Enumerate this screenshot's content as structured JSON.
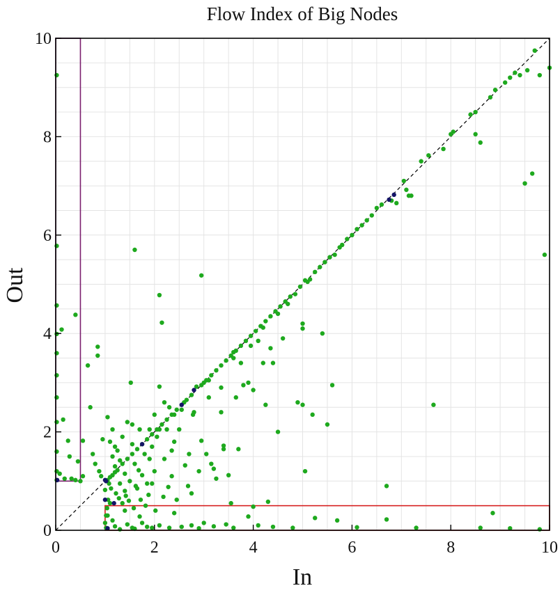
{
  "chart_data": {
    "type": "scatter",
    "title": "Flow Index of Big Nodes",
    "xlabel": "In",
    "ylabel": "Out",
    "xlim": [
      0,
      10
    ],
    "ylim": [
      0,
      10
    ],
    "x_ticks": [
      "0",
      "2",
      "4",
      "6",
      "8",
      "10"
    ],
    "y_ticks": [
      "0",
      "2",
      "4",
      "6",
      "8",
      "10"
    ],
    "grid": true,
    "legend": "none",
    "reference_line": {
      "from": [
        0,
        0
      ],
      "to": [
        10,
        10
      ],
      "style": "dashed",
      "color": "#000000"
    },
    "regions": [
      {
        "x0": 0,
        "x1": 0.5,
        "y0": 1,
        "y1": 10,
        "color": "#7a1f6e"
      },
      {
        "x0": 1,
        "x1": 10,
        "y0": 0,
        "y1": 0.5,
        "color": "#d61f1f"
      }
    ],
    "series": [
      {
        "color": "#1ea91e",
        "points": [
          [
            0.02,
            9.25
          ],
          [
            0.02,
            5.78
          ],
          [
            0.02,
            4.57
          ],
          [
            0.02,
            3.99
          ],
          [
            0.02,
            3.6
          ],
          [
            0.02,
            3.15
          ],
          [
            0.02,
            2.7
          ],
          [
            0.02,
            2.2
          ],
          [
            0.02,
            1.6
          ],
          [
            0.02,
            1.2
          ],
          [
            0.02,
            1.02
          ],
          [
            0.12,
            4.08
          ],
          [
            0.15,
            2.25
          ],
          [
            0.25,
            1.82
          ],
          [
            0.28,
            1.5
          ],
          [
            0.32,
            1.05
          ],
          [
            0.4,
            1.02
          ],
          [
            0.45,
            1.4
          ],
          [
            0.5,
            1.0
          ],
          [
            0.4,
            4.38
          ],
          [
            0.08,
            1.15
          ],
          [
            0.18,
            1.05
          ],
          [
            0.55,
            1.82
          ],
          [
            0.55,
            1.1
          ],
          [
            0.65,
            3.35
          ],
          [
            0.75,
            1.55
          ],
          [
            0.8,
            1.35
          ],
          [
            0.85,
            3.73
          ],
          [
            0.85,
            3.55
          ],
          [
            0.95,
            1.85
          ],
          [
            0.7,
            2.5
          ],
          [
            0.88,
            1.2
          ],
          [
            0.92,
            1.1
          ],
          [
            1.05,
            2.3
          ],
          [
            1.1,
            1.8
          ],
          [
            1.15,
            2.05
          ],
          [
            1.15,
            1.5
          ],
          [
            1.2,
            1.7
          ],
          [
            1.2,
            1.3
          ],
          [
            1.25,
            1.62
          ],
          [
            1.3,
            1.42
          ],
          [
            1.3,
            0.95
          ],
          [
            1.35,
            1.9
          ],
          [
            1.4,
            1.15
          ],
          [
            1.4,
            0.8
          ],
          [
            1.45,
            2.2
          ],
          [
            1.5,
            1.0
          ],
          [
            1.52,
            3.0
          ],
          [
            1.55,
            1.75
          ],
          [
            1.55,
            2.15
          ],
          [
            1.6,
            5.7
          ],
          [
            1.6,
            1.35
          ],
          [
            1.65,
            0.85
          ],
          [
            1.7,
            2.05
          ],
          [
            1.75,
            1.12
          ],
          [
            1.8,
            1.55
          ],
          [
            1.85,
            0.95
          ],
          [
            1.9,
            1.45
          ],
          [
            1.9,
            2.05
          ],
          [
            1.95,
            1.7
          ],
          [
            2.0,
            1.2
          ],
          [
            2.0,
            2.35
          ],
          [
            2.05,
            1.9
          ],
          [
            2.1,
            2.92
          ],
          [
            2.1,
            4.78
          ],
          [
            2.15,
            4.22
          ],
          [
            2.2,
            2.6
          ],
          [
            2.25,
            2.05
          ],
          [
            2.3,
            2.5
          ],
          [
            2.35,
            1.1
          ],
          [
            2.4,
            1.8
          ],
          [
            2.4,
            0.35
          ],
          [
            2.5,
            2.05
          ],
          [
            2.55,
            2.45
          ],
          [
            2.6,
            2.6
          ],
          [
            2.7,
            1.55
          ],
          [
            2.75,
            0.75
          ],
          [
            2.8,
            2.4
          ],
          [
            2.85,
            2.92
          ],
          [
            2.9,
            1.2
          ],
          [
            2.95,
            5.18
          ],
          [
            3.0,
            3.0
          ],
          [
            3.05,
            1.55
          ],
          [
            3.1,
            2.7
          ],
          [
            3.2,
            1.25
          ],
          [
            3.25,
            1.05
          ],
          [
            3.35,
            2.9
          ],
          [
            3.4,
            1.72
          ],
          [
            3.4,
            1.65
          ],
          [
            3.55,
            0.55
          ],
          [
            3.6,
            3.62
          ],
          [
            3.65,
            2.7
          ],
          [
            3.75,
            3.4
          ],
          [
            3.8,
            2.95
          ],
          [
            3.9,
            3.0
          ],
          [
            3.95,
            3.75
          ],
          [
            4.0,
            2.85
          ],
          [
            4.1,
            3.85
          ],
          [
            4.2,
            3.4
          ],
          [
            4.25,
            2.55
          ],
          [
            4.35,
            3.7
          ],
          [
            4.4,
            3.4
          ],
          [
            4.5,
            4.4
          ],
          [
            4.6,
            3.9
          ],
          [
            4.7,
            4.6
          ],
          [
            4.85,
            4.8
          ],
          [
            4.9,
            2.6
          ],
          [
            5.0,
            2.55
          ],
          [
            5.0,
            4.1
          ],
          [
            5.0,
            4.2
          ],
          [
            5.05,
            1.2
          ],
          [
            5.1,
            5.05
          ],
          [
            5.2,
            2.35
          ],
          [
            5.4,
            4.0
          ],
          [
            5.5,
            2.15
          ],
          [
            5.6,
            2.95
          ],
          [
            5.65,
            5.6
          ],
          [
            5.8,
            5.8
          ],
          [
            6.0,
            6.0
          ],
          [
            6.2,
            6.2
          ],
          [
            6.4,
            6.4
          ],
          [
            6.5,
            6.55
          ],
          [
            6.6,
            6.62
          ],
          [
            6.7,
            0.9
          ],
          [
            6.8,
            6.7
          ],
          [
            6.9,
            6.65
          ],
          [
            7.1,
            6.92
          ],
          [
            7.15,
            6.8
          ],
          [
            7.4,
            7.5
          ],
          [
            7.55,
            7.62
          ],
          [
            7.65,
            2.55
          ],
          [
            7.85,
            7.75
          ],
          [
            8.0,
            8.05
          ],
          [
            8.05,
            8.1
          ],
          [
            8.4,
            8.45
          ],
          [
            8.5,
            8.5
          ],
          [
            8.5,
            8.05
          ],
          [
            8.6,
            7.88
          ],
          [
            8.8,
            8.8
          ],
          [
            8.85,
            0.35
          ],
          [
            8.9,
            8.95
          ],
          [
            9.1,
            9.1
          ],
          [
            9.2,
            9.2
          ],
          [
            9.3,
            9.3
          ],
          [
            9.4,
            9.25
          ],
          [
            9.5,
            7.05
          ],
          [
            9.55,
            9.35
          ],
          [
            9.65,
            7.25
          ],
          [
            9.7,
            9.75
          ],
          [
            9.8,
            9.25
          ],
          [
            9.9,
            5.6
          ],
          [
            10.0,
            9.4
          ],
          [
            7.05,
            7.1
          ],
          [
            7.2,
            6.8
          ],
          [
            1.02,
            0.05
          ],
          [
            1.05,
            0.3
          ],
          [
            1.1,
            0.55
          ],
          [
            1.15,
            0.2
          ],
          [
            1.2,
            0.08
          ],
          [
            1.3,
            0.02
          ],
          [
            1.4,
            0.4
          ],
          [
            1.45,
            0.12
          ],
          [
            1.55,
            0.05
          ],
          [
            1.6,
            0.03
          ],
          [
            1.7,
            0.28
          ],
          [
            1.75,
            0.15
          ],
          [
            1.85,
            0.07
          ],
          [
            1.95,
            0.05
          ],
          [
            2.1,
            0.1
          ],
          [
            2.3,
            0.05
          ],
          [
            2.55,
            0.07
          ],
          [
            2.75,
            0.1
          ],
          [
            2.9,
            0.04
          ],
          [
            3.0,
            0.15
          ],
          [
            3.2,
            0.08
          ],
          [
            3.45,
            0.12
          ],
          [
            3.6,
            0.05
          ],
          [
            3.9,
            0.28
          ],
          [
            4.1,
            0.1
          ],
          [
            4.4,
            0.07
          ],
          [
            4.8,
            0.05
          ],
          [
            5.25,
            0.25
          ],
          [
            5.7,
            0.2
          ],
          [
            6.1,
            0.06
          ],
          [
            6.7,
            0.22
          ],
          [
            7.3,
            0.05
          ],
          [
            8.6,
            0.05
          ],
          [
            9.2,
            0.04
          ],
          [
            9.8,
            0.02
          ],
          [
            1.08,
            0.95
          ],
          [
            1.12,
            0.85
          ],
          [
            1.22,
            0.75
          ],
          [
            1.28,
            0.65
          ],
          [
            1.35,
            0.55
          ],
          [
            1.42,
            0.7
          ],
          [
            1.48,
            0.6
          ],
          [
            1.58,
            0.45
          ],
          [
            1.62,
            0.9
          ],
          [
            1.72,
            0.62
          ],
          [
            1.82,
            0.5
          ],
          [
            1.88,
            0.72
          ],
          [
            2.02,
            0.4
          ],
          [
            2.18,
            0.68
          ],
          [
            2.28,
            0.88
          ],
          [
            2.45,
            0.62
          ],
          [
            2.62,
            1.32
          ],
          [
            2.68,
            0.9
          ],
          [
            2.95,
            1.82
          ],
          [
            3.15,
            1.35
          ],
          [
            3.5,
            1.12
          ],
          [
            3.7,
            1.65
          ],
          [
            4.3,
            0.58
          ],
          [
            4.0,
            0.48
          ],
          [
            2.2,
            1.45
          ],
          [
            1.95,
            0.95
          ],
          [
            1.68,
            1.22
          ],
          [
            2.35,
            1.62
          ],
          [
            2.78,
            2.35
          ],
          [
            3.35,
            2.4
          ],
          [
            4.5,
            2.0
          ],
          [
            1.15,
            1.12
          ],
          [
            1.25,
            1.22
          ],
          [
            1.35,
            1.35
          ],
          [
            1.45,
            1.45
          ],
          [
            1.55,
            1.55
          ],
          [
            1.65,
            1.65
          ],
          [
            1.75,
            1.75
          ],
          [
            1.85,
            1.85
          ],
          [
            1.95,
            1.95
          ],
          [
            2.05,
            2.05
          ],
          [
            2.15,
            2.15
          ],
          [
            2.25,
            2.25
          ],
          [
            2.35,
            2.35
          ],
          [
            2.45,
            2.45
          ],
          [
            2.65,
            2.65
          ],
          [
            2.75,
            2.75
          ],
          [
            2.95,
            2.95
          ],
          [
            3.05,
            3.05
          ],
          [
            3.15,
            3.15
          ],
          [
            3.25,
            3.25
          ],
          [
            3.35,
            3.35
          ],
          [
            3.45,
            3.45
          ],
          [
            3.55,
            3.55
          ],
          [
            3.65,
            3.65
          ],
          [
            3.75,
            3.75
          ],
          [
            3.85,
            3.85
          ],
          [
            3.95,
            3.95
          ],
          [
            4.05,
            4.05
          ],
          [
            4.15,
            4.15
          ],
          [
            4.25,
            4.25
          ],
          [
            4.35,
            4.35
          ],
          [
            4.45,
            4.45
          ],
          [
            4.55,
            4.55
          ],
          [
            4.65,
            4.65
          ],
          [
            4.75,
            4.75
          ],
          [
            4.95,
            4.95
          ],
          [
            5.05,
            5.08
          ],
          [
            5.25,
            5.25
          ],
          [
            5.35,
            5.35
          ],
          [
            5.45,
            5.45
          ],
          [
            5.55,
            5.55
          ],
          [
            5.75,
            5.75
          ],
          [
            5.9,
            5.92
          ],
          [
            6.1,
            6.12
          ],
          [
            6.3,
            6.3
          ],
          [
            1.05,
            1.02
          ],
          [
            1.1,
            1.08
          ],
          [
            1.2,
            1.18
          ],
          [
            2.1,
            2.05
          ],
          [
            2.4,
            2.35
          ],
          [
            3.1,
            3.05
          ],
          [
            3.6,
            3.5
          ],
          [
            4.2,
            4.12
          ],
          [
            5.15,
            5.1
          ],
          [
            1.02,
            0.3
          ],
          [
            1.04,
            0.45
          ],
          [
            1.0,
            0.15
          ],
          [
            1.06,
            0.62
          ],
          [
            1.0,
            0.82
          ]
        ]
      },
      {
        "color": "#141466",
        "points": [
          [
            1.0,
            1.02
          ],
          [
            1.02,
            1.0
          ],
          [
            1.0,
            0.62
          ],
          [
            1.18,
            0.55
          ],
          [
            1.75,
            1.75
          ],
          [
            2.55,
            2.55
          ],
          [
            2.8,
            2.85
          ],
          [
            6.75,
            6.72
          ],
          [
            6.85,
            6.82
          ],
          [
            0.03,
            1.02
          ],
          [
            1.05,
            0.04
          ]
        ]
      }
    ]
  }
}
